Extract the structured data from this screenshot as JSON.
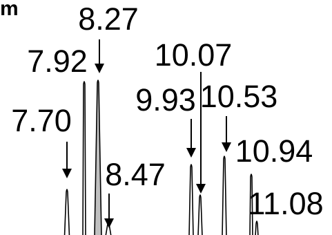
{
  "panel_label": "m",
  "colors": {
    "line": "#000000",
    "fill": "#c0c0c0",
    "background": "#ffffff"
  },
  "chart_data": {
    "type": "line",
    "title": "",
    "xlabel": "",
    "ylabel": "",
    "grid": false,
    "peaks": [
      {
        "label": "7.70",
        "x": 7.7,
        "filled": false,
        "arrow": true
      },
      {
        "label": "7.92",
        "x": 7.92,
        "filled": false,
        "arrow": false
      },
      {
        "label": "8.27",
        "x": 8.27,
        "filled": true,
        "arrow": true
      },
      {
        "label": "8.47",
        "x": 8.47,
        "filled": false,
        "arrow": true
      },
      {
        "label": "9.93",
        "x": 9.93,
        "filled": false,
        "arrow": true
      },
      {
        "label": "10.07",
        "x": 10.07,
        "filled": false,
        "arrow": true
      },
      {
        "label": "10.53",
        "x": 10.53,
        "filled": false,
        "arrow": true
      },
      {
        "label": "10.94",
        "x": 10.94,
        "filled": false,
        "arrow": false
      },
      {
        "label": "11.08",
        "x": 11.08,
        "filled": false,
        "arrow": false
      }
    ]
  }
}
